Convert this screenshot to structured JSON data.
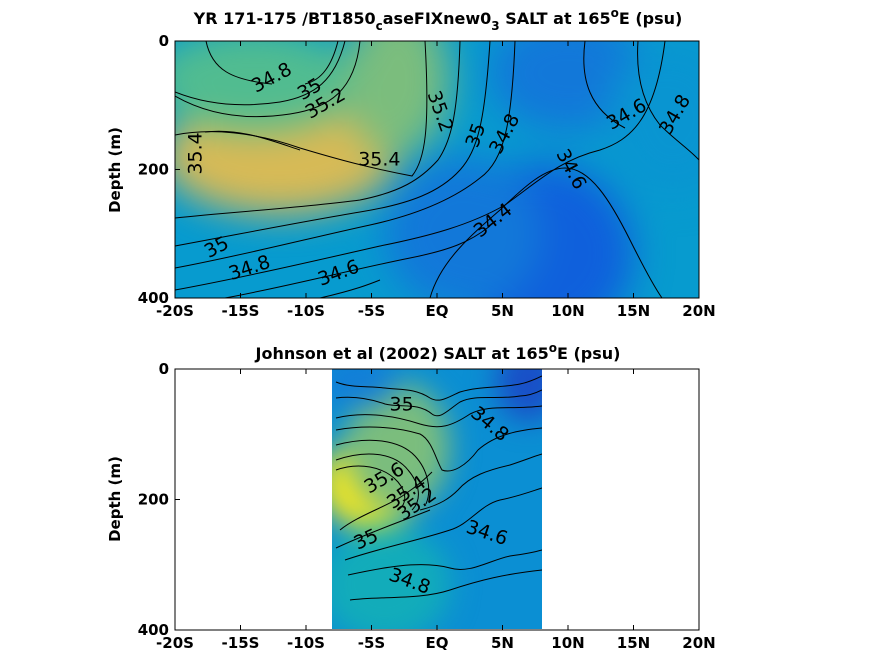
{
  "chart_data": [
    {
      "type": "heatmap",
      "title": {
        "prefix": "YR 171-175 /BT1850",
        "sub1": "c",
        "mid": "aseFIXnew0",
        "sub2": "3",
        "pre_deg": " SALT at 165",
        "sup": "o",
        "post": "E (psu)"
      },
      "xlabel": "",
      "ylabel": "Depth (m)",
      "xlim": [
        -20,
        20
      ],
      "ylim": [
        0,
        400
      ],
      "y_reversed": true,
      "x_ticks": [
        -20,
        -15,
        -10,
        -5,
        0,
        5,
        10,
        15,
        20
      ],
      "x_tick_labels": [
        "-20S",
        "-15S",
        "-10S",
        "-5S",
        "EQ",
        "5N",
        "10N",
        "15N",
        "20N"
      ],
      "y_ticks": [
        0,
        200,
        400
      ],
      "y_tick_labels": [
        "0",
        "200",
        "400"
      ],
      "data_extent_x": [
        -20,
        20
      ],
      "colormap": "parula",
      "color_range_psu": [
        34.0,
        35.8
      ],
      "blobs": [
        {
          "x": -12,
          "y": 180,
          "value": 35.5,
          "rx": 9,
          "ry": 90
        },
        {
          "x": -14,
          "y": 60,
          "value": 35.15,
          "rx": 8,
          "ry": 80
        },
        {
          "x": -3,
          "y": 60,
          "value": 35.25,
          "rx": 4,
          "ry": 120
        },
        {
          "x": 8,
          "y": 330,
          "value": 34.3,
          "rx": 7,
          "ry": 140
        },
        {
          "x": 10,
          "y": 50,
          "value": 34.5,
          "rx": 6,
          "ry": 90
        },
        {
          "x": 18,
          "y": 120,
          "value": 34.75,
          "rx": 5,
          "ry": 120
        },
        {
          "x": 2,
          "y": 300,
          "value": 34.5,
          "rx": 6,
          "ry": 120
        }
      ],
      "background_value": 34.8,
      "contour_labels": [
        {
          "text": "34.8",
          "x": -12.6,
          "y": 58,
          "angle": -28
        },
        {
          "text": "35",
          "x": -9.7,
          "y": 76,
          "angle": -30
        },
        {
          "text": "35.2",
          "x": -8.5,
          "y": 98,
          "angle": -30
        },
        {
          "text": "35.2",
          "x": 0.2,
          "y": 110,
          "angle": 70
        },
        {
          "text": "35",
          "x": 3.0,
          "y": 147,
          "angle": -70
        },
        {
          "text": "34.8",
          "x": 5.2,
          "y": 145,
          "angle": -62
        },
        {
          "text": "34.6",
          "x": 14.5,
          "y": 115,
          "angle": -30
        },
        {
          "text": "34.8",
          "x": 18.2,
          "y": 115,
          "angle": -60
        },
        {
          "text": "35.4",
          "x": -18.4,
          "y": 175,
          "angle": -90
        },
        {
          "text": "35.4",
          "x": -4.4,
          "y": 185,
          "angle": 0
        },
        {
          "text": "34.6",
          "x": 10.2,
          "y": 200,
          "angle": 62
        },
        {
          "text": "34.4",
          "x": 4.3,
          "y": 280,
          "angle": -38
        },
        {
          "text": "35",
          "x": -16.8,
          "y": 322,
          "angle": -28
        },
        {
          "text": "34.8",
          "x": -14.3,
          "y": 354,
          "angle": -18
        },
        {
          "text": "34.6",
          "x": -7.5,
          "y": 362,
          "angle": -20
        }
      ]
    },
    {
      "type": "heatmap",
      "title": {
        "prefix": "Johnson et al (2002) SALT at 165",
        "sup": "o",
        "post": "E (psu)"
      },
      "xlabel": "",
      "ylabel": "Depth (m)",
      "xlim": [
        -20,
        20
      ],
      "ylim": [
        0,
        400
      ],
      "y_reversed": true,
      "x_ticks": [
        -20,
        -15,
        -10,
        -5,
        0,
        5,
        10,
        15,
        20
      ],
      "x_tick_labels": [
        "-20S",
        "-15S",
        "-10S",
        "-5S",
        "EQ",
        "5N",
        "10N",
        "15N",
        "20N"
      ],
      "y_ticks": [
        0,
        200,
        400
      ],
      "y_tick_labels": [
        "0",
        "200",
        "400"
      ],
      "data_extent_x": [
        -8,
        8
      ],
      "colormap": "parula",
      "color_range_psu": [
        34.0,
        35.8
      ],
      "blobs": [
        {
          "x": -5,
          "y": 175,
          "value": 35.75,
          "rx": 4,
          "ry": 70
        },
        {
          "x": -3,
          "y": 120,
          "value": 35.25,
          "rx": 4,
          "ry": 100
        },
        {
          "x": 7,
          "y": 20,
          "value": 34.2,
          "rx": 2.5,
          "ry": 60
        },
        {
          "x": -6,
          "y": 20,
          "value": 34.55,
          "rx": 3,
          "ry": 40
        },
        {
          "x": -4,
          "y": 330,
          "value": 34.95,
          "rx": 5,
          "ry": 90
        }
      ],
      "background_value": 34.7,
      "contour_labels": [
        {
          "text": "35",
          "x": -2.7,
          "y": 55,
          "angle": 0
        },
        {
          "text": "34.8",
          "x": 4.0,
          "y": 85,
          "angle": 40
        },
        {
          "text": "35.6",
          "x": -4.0,
          "y": 168,
          "angle": -30
        },
        {
          "text": "35.4",
          "x": -2.3,
          "y": 190,
          "angle": -35
        },
        {
          "text": "35.2",
          "x": -1.5,
          "y": 208,
          "angle": -35
        },
        {
          "text": "35",
          "x": -5.4,
          "y": 262,
          "angle": -25
        },
        {
          "text": "34.6",
          "x": 3.8,
          "y": 252,
          "angle": 18
        },
        {
          "text": "34.8",
          "x": -2.1,
          "y": 326,
          "angle": 20
        }
      ]
    }
  ]
}
